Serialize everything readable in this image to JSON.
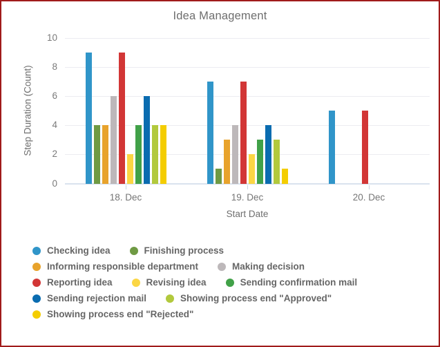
{
  "frame": {
    "border_color": "#a01b1b",
    "background": "#ffffff"
  },
  "chart_data": {
    "type": "bar",
    "title": "Idea Management",
    "xlabel": "Start Date",
    "ylabel": "Step Duration (Count)",
    "ylim": [
      0,
      10
    ],
    "yticks": [
      0,
      2,
      4,
      6,
      8,
      10
    ],
    "grid": "horizontal",
    "legend_position": "bottom",
    "categories": [
      "18. Dec",
      "19. Dec",
      "20. Dec"
    ],
    "series": [
      {
        "name": "Checking idea",
        "color": "#3095c9",
        "values": [
          9,
          7,
          5
        ]
      },
      {
        "name": "Finishing process",
        "color": "#6f9a43",
        "values": [
          4,
          1,
          null
        ]
      },
      {
        "name": "Informing responsible department",
        "color": "#e8a32c",
        "values": [
          4,
          3,
          null
        ]
      },
      {
        "name": "Making decision",
        "color": "#bdb8ba",
        "values": [
          6,
          4,
          null
        ]
      },
      {
        "name": "Reporting idea",
        "color": "#d23636",
        "values": [
          9,
          7,
          5
        ]
      },
      {
        "name": "Revising idea",
        "color": "#fbd644",
        "values": [
          2,
          2,
          null
        ]
      },
      {
        "name": "Sending confirmation mail",
        "color": "#41a148",
        "values": [
          4,
          3,
          null
        ]
      },
      {
        "name": "Sending rejection mail",
        "color": "#0a6cb0",
        "values": [
          6,
          4,
          null
        ]
      },
      {
        "name": "Showing process end \"Approved\"",
        "color": "#b2c93d",
        "values": [
          4,
          3,
          null
        ]
      },
      {
        "name": "Showing process end \"Rejected\"",
        "color": "#f4cd00",
        "values": [
          4,
          1,
          null
        ]
      }
    ],
    "legend_rows": [
      [
        0,
        1
      ],
      [
        2,
        3
      ],
      [
        4,
        5,
        6
      ],
      [
        7,
        8
      ],
      [
        9
      ]
    ]
  }
}
